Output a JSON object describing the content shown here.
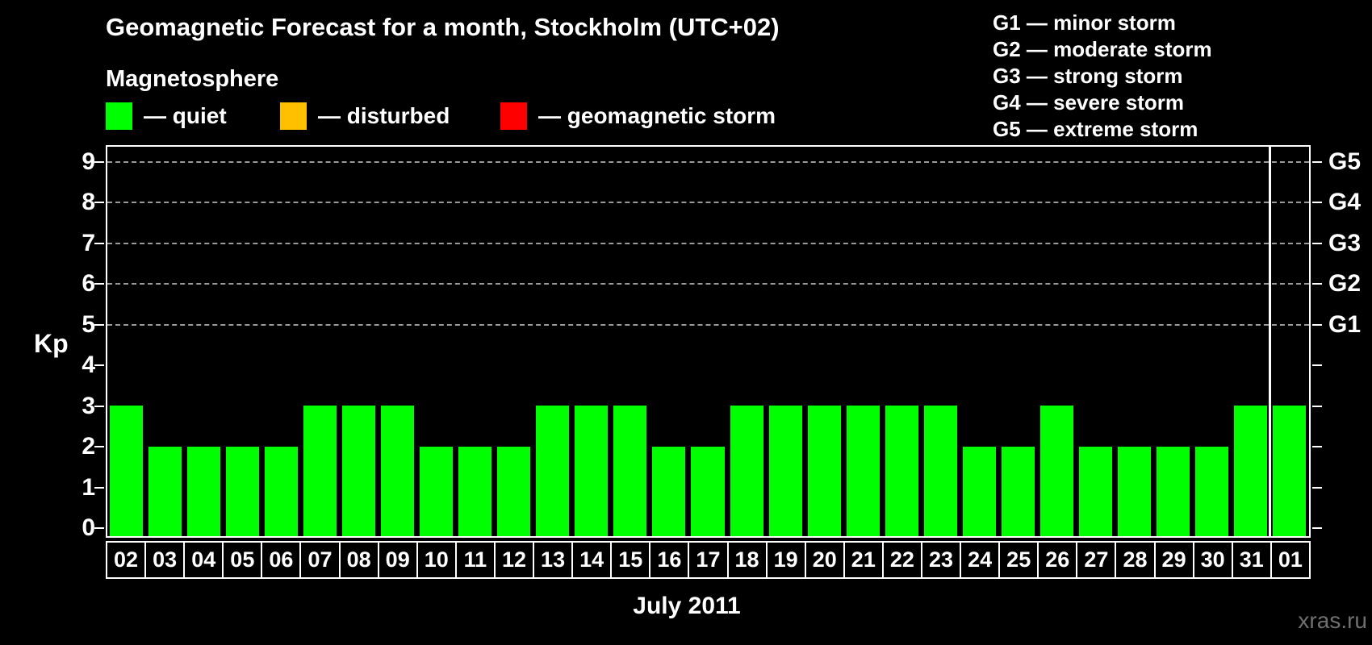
{
  "title": "Geomagnetic Forecast for a month, Stockholm (UTC+02)",
  "legend": {
    "heading": "Magnetosphere",
    "items": [
      {
        "name": "quiet",
        "color": "#00ff00",
        "label": "— quiet"
      },
      {
        "name": "disturbed",
        "color": "#ffc000",
        "label": "— disturbed"
      },
      {
        "name": "geomagnetic-storm",
        "color": "#ff0000",
        "label": "— geomagnetic storm"
      }
    ]
  },
  "g_scale_legend": [
    "G1 — minor storm",
    "G2 — moderate storm",
    "G3 — strong storm",
    "G4 — severe storm",
    "G5 — extreme storm"
  ],
  "watermark": "xras.ru",
  "chart_data": {
    "type": "bar",
    "title": "Geomagnetic Forecast for a month, Stockholm (UTC+02)",
    "xlabel": "July 2011",
    "ylabel": "Kp",
    "ylim": [
      0,
      9
    ],
    "yticks": [
      0,
      1,
      2,
      3,
      4,
      5,
      6,
      7,
      8,
      9
    ],
    "gridlines_at_kp": [
      5,
      6,
      7,
      8,
      9
    ],
    "right_axis_labels": [
      {
        "kp": 5,
        "label": "G1"
      },
      {
        "kp": 6,
        "label": "G2"
      },
      {
        "kp": 7,
        "label": "G3"
      },
      {
        "kp": 8,
        "label": "G4"
      },
      {
        "kp": 9,
        "label": "G5"
      }
    ],
    "bar_color": "#00ff00",
    "categories": [
      "02",
      "03",
      "04",
      "05",
      "06",
      "07",
      "08",
      "09",
      "10",
      "11",
      "12",
      "13",
      "14",
      "15",
      "16",
      "17",
      "18",
      "19",
      "20",
      "21",
      "22",
      "23",
      "24",
      "25",
      "26",
      "27",
      "28",
      "29",
      "30",
      "31",
      "01"
    ],
    "values": [
      3,
      2,
      2,
      2,
      2,
      3,
      3,
      3,
      2,
      2,
      2,
      3,
      3,
      3,
      2,
      2,
      3,
      3,
      3,
      3,
      3,
      3,
      2,
      2,
      3,
      2,
      2,
      2,
      2,
      3,
      3
    ],
    "month_separator_after_category": "31",
    "legend_position": "top-left",
    "grid": "dashed horizontal lines at Kp 5-9 only"
  }
}
